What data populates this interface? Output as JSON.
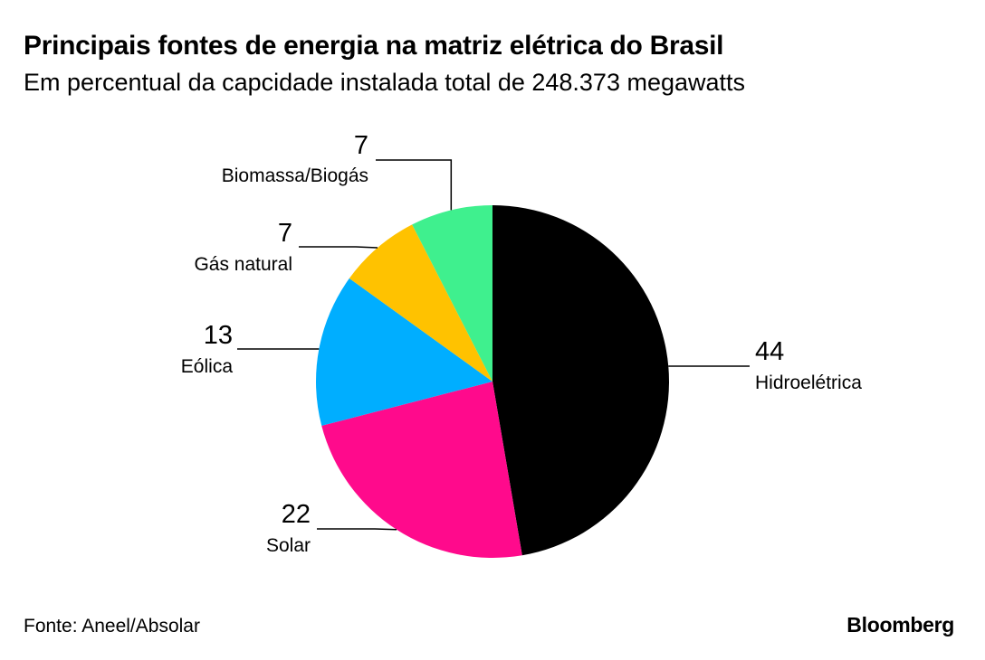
{
  "header": {
    "title": "Principais fontes de energia na matriz elétrica do Brasil",
    "subtitle": "Em percentual da capcidade instalada total de 248.373 megawatts"
  },
  "footer": {
    "source": "Fonte: Aneel/Absolar",
    "brand": "Bloomberg"
  },
  "chart_data": {
    "type": "pie",
    "start": "12 o'clock",
    "direction": "clockwise",
    "slices": [
      {
        "label": "Hidroelétrica",
        "value": 44,
        "display": "44",
        "color": "#000000"
      },
      {
        "label": "Solar",
        "value": 22,
        "display": "22",
        "color": "#ff0a8c"
      },
      {
        "label": "Eólica",
        "value": 13,
        "display": "13",
        "color": "#00aeff"
      },
      {
        "label": "Gás natural",
        "value": 7,
        "display": "7",
        "color": "#ffc200"
      },
      {
        "label": "Biomassa/Biogás",
        "value": 7,
        "display": "7",
        "color": "#3ff08e"
      }
    ]
  }
}
